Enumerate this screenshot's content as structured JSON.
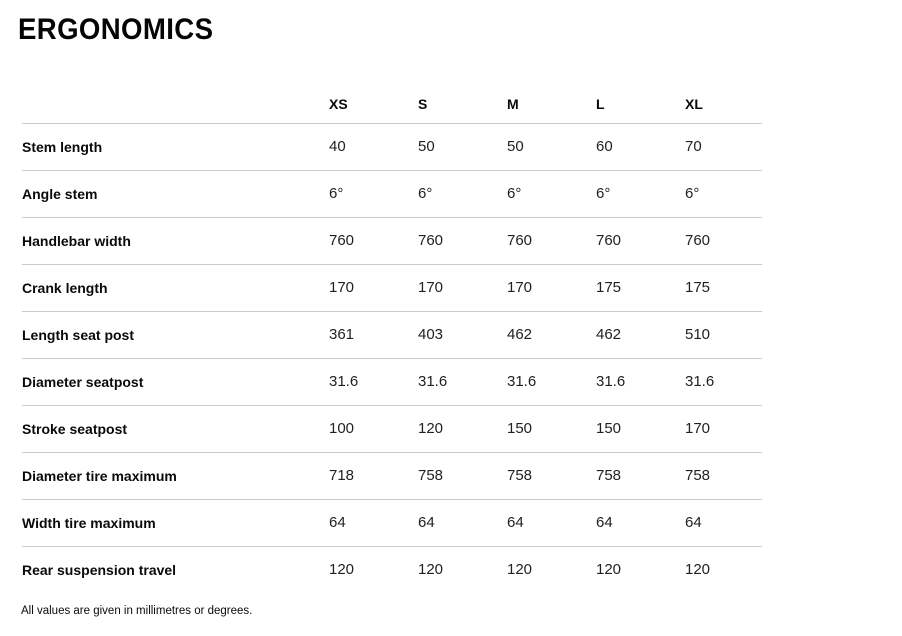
{
  "page": {
    "title": "ERGONOMICS",
    "footnote": "All values are given in millimetres or degrees."
  },
  "table": {
    "columns": [
      "XS",
      "S",
      "M",
      "L",
      "XL"
    ],
    "rows": [
      {
        "label": "Stem length",
        "values": [
          "40",
          "50",
          "50",
          "60",
          "70"
        ]
      },
      {
        "label": "Angle stem",
        "values": [
          "6°",
          "6°",
          "6°",
          "6°",
          "6°"
        ]
      },
      {
        "label": "Handlebar width",
        "values": [
          "760",
          "760",
          "760",
          "760",
          "760"
        ]
      },
      {
        "label": "Crank length",
        "values": [
          "170",
          "170",
          "170",
          "175",
          "175"
        ]
      },
      {
        "label": "Length seat post",
        "values": [
          "361",
          "403",
          "462",
          "462",
          "510"
        ]
      },
      {
        "label": "Diameter seatpost",
        "values": [
          "31.6",
          "31.6",
          "31.6",
          "31.6",
          "31.6"
        ]
      },
      {
        "label": "Stroke seatpost",
        "values": [
          "100",
          "120",
          "150",
          "150",
          "170"
        ]
      },
      {
        "label": "Diameter tire maximum",
        "values": [
          "718",
          "758",
          "758",
          "758",
          "758"
        ]
      },
      {
        "label": "Width tire maximum",
        "values": [
          "64",
          "64",
          "64",
          "64",
          "64"
        ]
      },
      {
        "label": "Rear suspension travel",
        "values": [
          "120",
          "120",
          "120",
          "120",
          "120"
        ]
      }
    ]
  },
  "colors": {
    "background": "#ffffff",
    "text": "#0a0a0a",
    "value_text": "#212121",
    "divider": "#cccccc"
  }
}
